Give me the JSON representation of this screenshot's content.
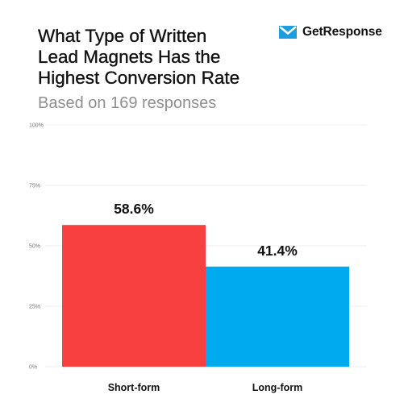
{
  "header": {
    "title_lines": [
      "What Type of Written",
      "Lead Magnets Has the",
      "Highest Conversion Rate"
    ],
    "subtitle": "Based on 169 responses"
  },
  "brand": {
    "name": "GetResponse",
    "icon": "envelope-icon",
    "color": "#1a9ee0"
  },
  "chart_data": {
    "type": "bar",
    "title": "What Type of Written Lead Magnets Has the Highest Conversion Rate",
    "subtitle": "Based on 169 responses",
    "categories": [
      "Short-form",
      "Long-form"
    ],
    "values": [
      58.6,
      41.4
    ],
    "value_labels": [
      "58.6%",
      "41.4%"
    ],
    "colors": [
      "#f94040",
      "#00aaee"
    ],
    "ylim": [
      0,
      100
    ],
    "yticks": [
      0,
      25,
      50,
      75,
      100
    ],
    "ytick_labels": [
      "0%",
      "25%",
      "50%",
      "75%",
      "100%"
    ],
    "grid": true,
    "legend": "none",
    "xlabel": "",
    "ylabel": ""
  }
}
